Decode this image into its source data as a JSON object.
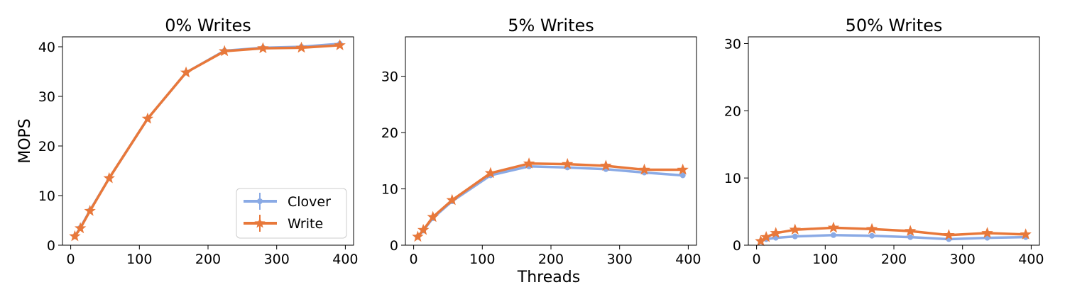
{
  "figure": {
    "xlabel": "Threads",
    "ylabel": "MOPS"
  },
  "legend": {
    "placement": "lower-right",
    "entries": [
      "Clover",
      "Write"
    ]
  },
  "colors": {
    "clover": "#8aaae5",
    "write": "#e8783a"
  },
  "chart_data": [
    {
      "type": "line",
      "title": "0% Writes",
      "xlabel": "",
      "ylabel": "MOPS",
      "xlim": [
        -12,
        412
      ],
      "ylim": [
        0,
        42
      ],
      "xticks": [
        0,
        100,
        200,
        300,
        400
      ],
      "yticks": [
        0,
        10,
        20,
        30,
        40
      ],
      "grid": false,
      "x": [
        6,
        14,
        28,
        56,
        112,
        168,
        224,
        280,
        336,
        392
      ],
      "series": [
        {
          "name": "Clover",
          "marker": "circle",
          "values": [
            1.8,
            3.5,
            7.0,
            13.5,
            25.5,
            34.8,
            39.2,
            39.8,
            40.0,
            40.6
          ]
        },
        {
          "name": "Write",
          "marker": "star",
          "values": [
            1.8,
            3.4,
            6.9,
            13.5,
            25.5,
            34.8,
            39.1,
            39.7,
            39.8,
            40.3
          ]
        }
      ]
    },
    {
      "type": "line",
      "title": "5% Writes",
      "xlabel": "Threads",
      "ylabel": "",
      "xlim": [
        -12,
        412
      ],
      "ylim": [
        0,
        37
      ],
      "xticks": [
        0,
        100,
        200,
        300,
        400
      ],
      "yticks": [
        0,
        10,
        20,
        30
      ],
      "grid": false,
      "x": [
        6,
        14,
        28,
        56,
        112,
        168,
        224,
        280,
        336,
        392
      ],
      "series": [
        {
          "name": "Clover",
          "marker": "circle",
          "values": [
            1.5,
            2.6,
            4.8,
            7.8,
            12.4,
            14.0,
            13.8,
            13.5,
            12.9,
            12.4
          ]
        },
        {
          "name": "Write",
          "marker": "star",
          "values": [
            1.5,
            2.7,
            5.0,
            8.0,
            12.8,
            14.5,
            14.4,
            14.1,
            13.4,
            13.4
          ]
        }
      ]
    },
    {
      "type": "line",
      "title": "50% Writes",
      "xlabel": "",
      "ylabel": "",
      "xlim": [
        -12,
        412
      ],
      "ylim": [
        0,
        31
      ],
      "xticks": [
        0,
        100,
        200,
        300,
        400
      ],
      "yticks": [
        0,
        10,
        20,
        30
      ],
      "grid": false,
      "x": [
        6,
        14,
        28,
        56,
        112,
        168,
        224,
        280,
        336,
        392
      ],
      "series": [
        {
          "name": "Clover",
          "marker": "circle",
          "values": [
            0.6,
            0.9,
            1.1,
            1.3,
            1.5,
            1.4,
            1.2,
            0.9,
            1.1,
            1.2
          ]
        },
        {
          "name": "Write",
          "marker": "star",
          "values": [
            0.6,
            1.2,
            1.8,
            2.3,
            2.6,
            2.4,
            2.1,
            1.5,
            1.8,
            1.6
          ]
        }
      ]
    }
  ]
}
